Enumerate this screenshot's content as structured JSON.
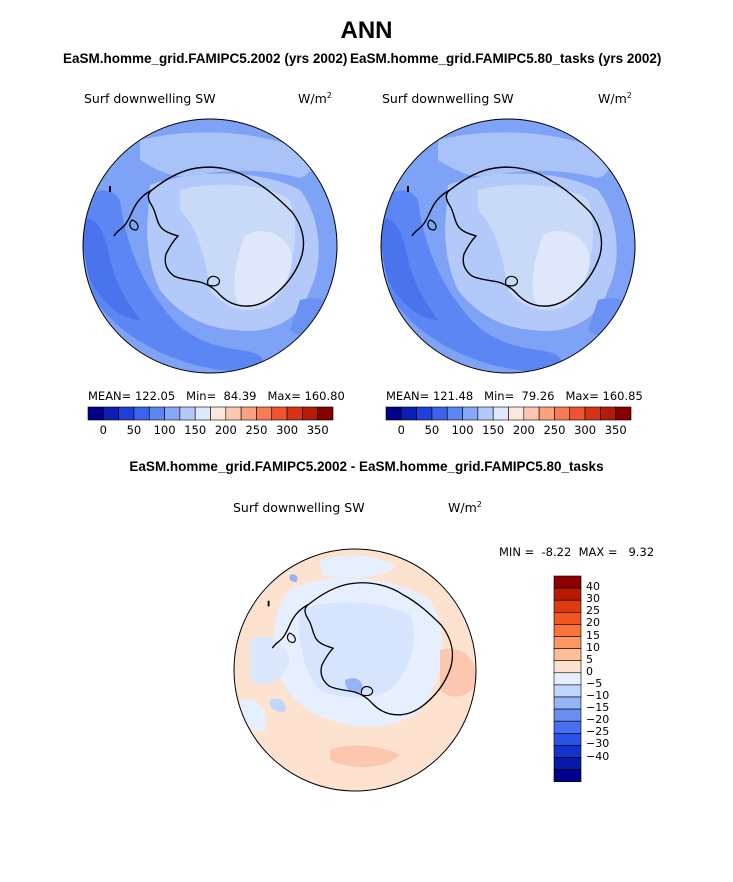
{
  "title": "ANN",
  "panels": [
    {
      "case_title": "EaSM.homme_grid.FAMIPC5.2002 (yrs 2002)",
      "variable": "Surf downwelling SW",
      "units_base": "W/m",
      "units_exp": "2",
      "stats": {
        "mean_label": "MEAN=",
        "mean": "122.05",
        "min_label": "Min=",
        "min": "84.39",
        "max_label": "Max=",
        "max": "160.80"
      }
    },
    {
      "case_title": "EaSM.homme_grid.FAMIPC5.80_tasks (yrs 2002)",
      "variable": "Surf downwelling SW",
      "units_base": "W/m",
      "units_exp": "2",
      "stats": {
        "mean_label": "MEAN=",
        "mean": "121.48",
        "min_label": "Min=",
        "min": "79.26",
        "max_label": "Max=",
        "max": "160.85"
      }
    }
  ],
  "abs_colorbar": {
    "colors": [
      "#00008b",
      "#0b1fb0",
      "#1e3fd9",
      "#3a63ee",
      "#5b86f4",
      "#86a8f7",
      "#b3c9f9",
      "#dfe8fb",
      "#fde7dc",
      "#fcc7ae",
      "#fba37e",
      "#f87b54",
      "#ef5430",
      "#d83318",
      "#b41b08",
      "#870000"
    ],
    "ticks": [
      "0",
      "50",
      "100",
      "150",
      "200",
      "250",
      "300",
      "350"
    ]
  },
  "diff_panel": {
    "title": "EaSM.homme_grid.FAMIPC5.2002 - EaSM.homme_grid.FAMIPC5.80_tasks",
    "variable": "Surf downwelling SW",
    "units_base": "W/m",
    "units_exp": "2",
    "min_label": "MIN =",
    "min": "-8.22",
    "max_label": "MAX =",
    "max": "9.32"
  },
  "diff_colorbar": {
    "colors": [
      "#8b0000",
      "#b81a00",
      "#dd3a10",
      "#f2561f",
      "#f8743a",
      "#fb9763",
      "#fdbe98",
      "#fde2cf",
      "#e6efff",
      "#c0d6fb",
      "#94b4f6",
      "#6a8ff2",
      "#4670ef",
      "#2852e8",
      "#1334cc",
      "#0a1aa8",
      "#00008b"
    ],
    "labels": [
      "40",
      "30",
      "25",
      "20",
      "15",
      "10",
      "5",
      "0",
      "−5",
      "−10",
      "−15",
      "−20",
      "−25",
      "−30",
      "−40"
    ]
  }
}
